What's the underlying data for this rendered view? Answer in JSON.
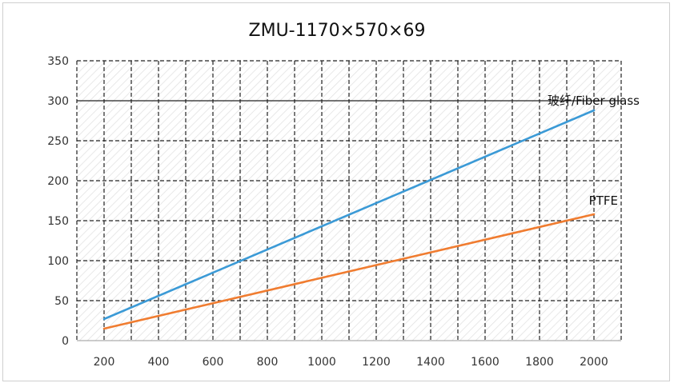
{
  "chart_data": {
    "type": "line",
    "title": "ZMU-1170×570×69",
    "xlabel": "",
    "ylabel": "",
    "x": [
      200,
      2000
    ],
    "xticks": [
      200,
      400,
      600,
      800,
      1000,
      1200,
      1400,
      1600,
      1800,
      2000
    ],
    "yticks": [
      0,
      50,
      100,
      150,
      200,
      250,
      300,
      350
    ],
    "xlim": [
      100,
      2100
    ],
    "ylim": [
      0,
      350
    ],
    "grid": true,
    "series": [
      {
        "name": "玻纤/Fiber glass",
        "color": "#3b9ad6",
        "values": [
          27,
          288
        ]
      },
      {
        "name": "PTFE",
        "color": "#f07c30",
        "values": [
          15,
          158
        ]
      }
    ]
  }
}
